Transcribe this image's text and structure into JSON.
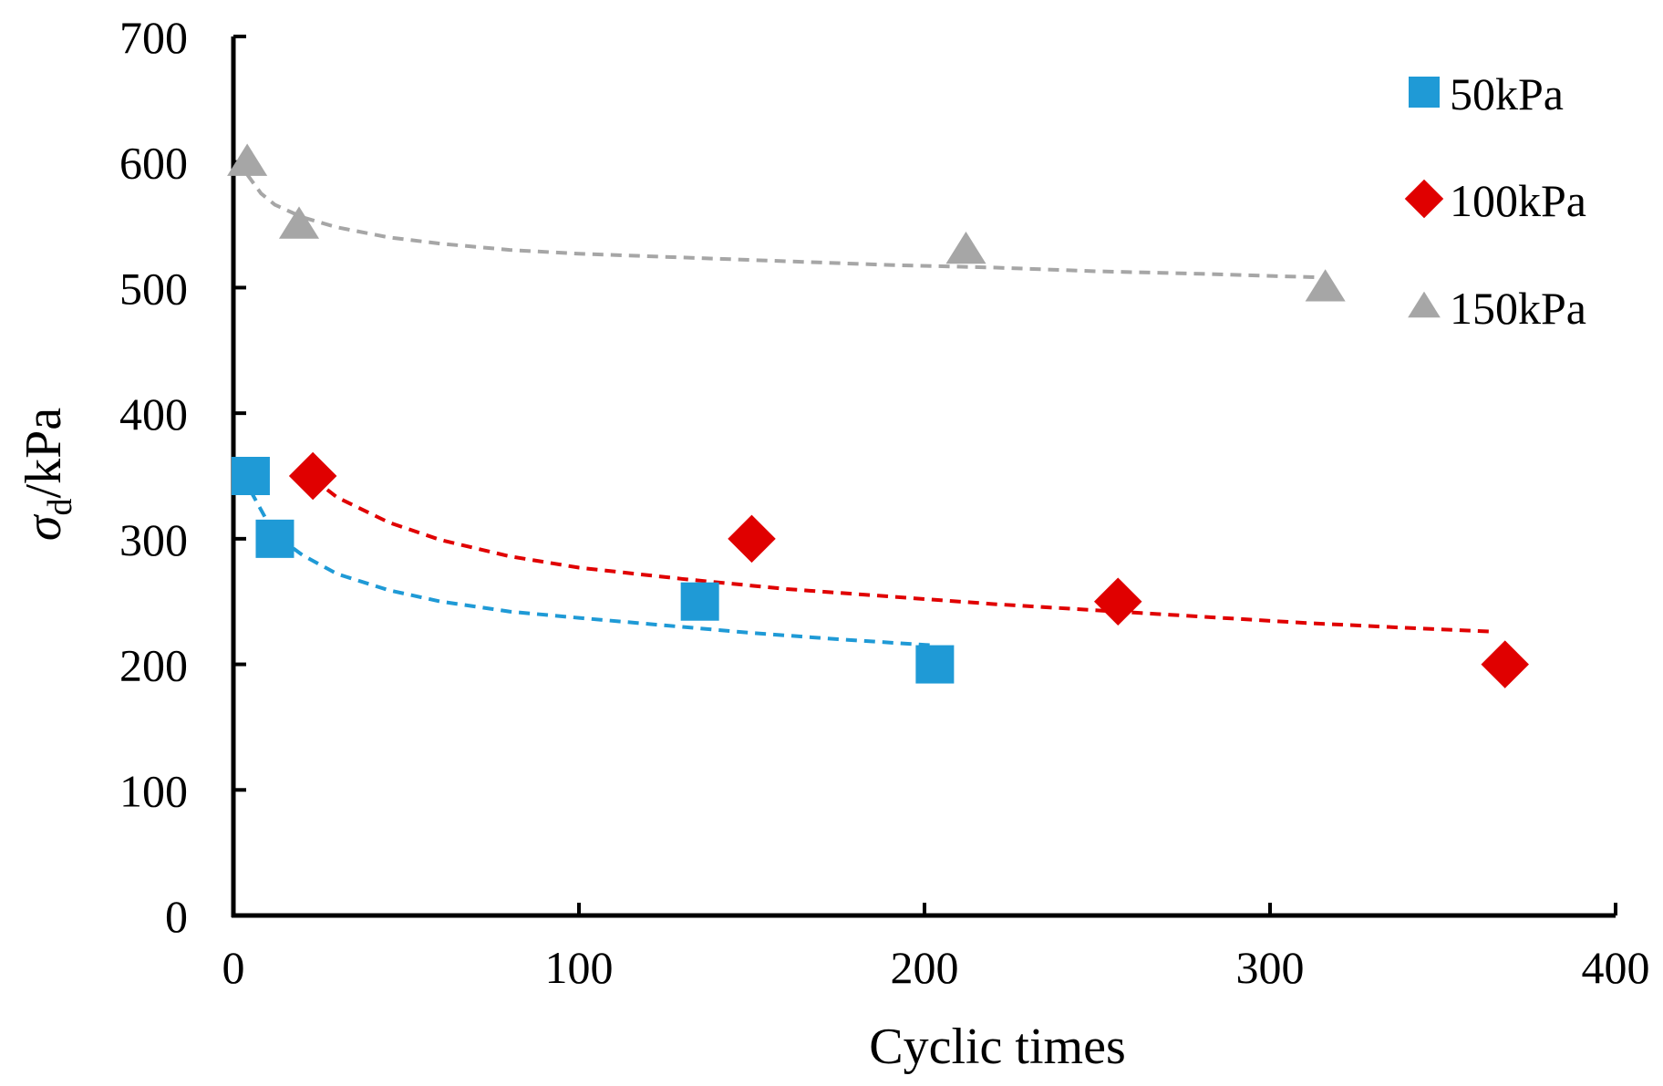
{
  "chart_data": {
    "type": "scatter",
    "title": "",
    "xlabel": "Cyclic times",
    "ylabel": {
      "symbol": "σ",
      "subscript": "d",
      "unit": "/kPa"
    },
    "xlim": [
      0,
      400
    ],
    "ylim": [
      0,
      700
    ],
    "xticks": [
      0,
      100,
      200,
      300,
      400
    ],
    "yticks": [
      0,
      100,
      200,
      300,
      400,
      500,
      600,
      700
    ],
    "grid": false,
    "legend_position": "top-right",
    "series": [
      {
        "name": "50kPa",
        "marker": "square",
        "color": "#1F9AD6",
        "points": [
          {
            "x": 5,
            "y": 350
          },
          {
            "x": 12,
            "y": 300
          },
          {
            "x": 135,
            "y": 250
          },
          {
            "x": 203,
            "y": 200
          }
        ],
        "trendline": {
          "style": "dashed",
          "x": [
            5,
            8,
            12,
            20,
            30,
            45,
            60,
            80,
            100,
            125,
            150,
            175,
            203
          ],
          "y": [
            338,
            323,
            303,
            287,
            272,
            259,
            250,
            242,
            237,
            231,
            225,
            220,
            215
          ]
        }
      },
      {
        "name": "100kPa",
        "marker": "diamond",
        "color": "#E00000",
        "points": [
          {
            "x": 23,
            "y": 350
          },
          {
            "x": 150,
            "y": 300
          },
          {
            "x": 256,
            "y": 250
          },
          {
            "x": 368,
            "y": 200
          }
        ],
        "trendline": {
          "style": "dashed",
          "x": [
            23,
            30,
            45,
            60,
            80,
            100,
            130,
            160,
            190,
            220,
            250,
            280,
            310,
            340,
            365
          ],
          "y": [
            348,
            333,
            313,
            299,
            286,
            277,
            268,
            260,
            254,
            248,
            243,
            238,
            233,
            229,
            226
          ]
        }
      },
      {
        "name": "150kPa",
        "marker": "triangle",
        "color": "#A6A6A6",
        "points": [
          {
            "x": 4,
            "y": 600
          },
          {
            "x": 19,
            "y": 550
          },
          {
            "x": 212,
            "y": 530
          },
          {
            "x": 316,
            "y": 500
          }
        ],
        "trendline": {
          "style": "dashed",
          "x": [
            4,
            8,
            12,
            20,
            30,
            45,
            60,
            80,
            100,
            130,
            160,
            190,
            220,
            250,
            280,
            316
          ],
          "y": [
            590,
            575,
            566,
            556,
            548,
            540,
            535,
            530,
            527,
            524,
            521,
            518,
            516,
            513,
            511,
            508
          ]
        }
      }
    ]
  }
}
